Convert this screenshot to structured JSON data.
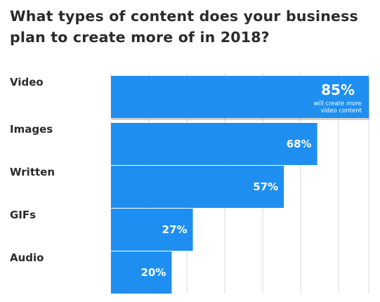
{
  "colors": {
    "bar": "#1e8ff0",
    "grid": "#d9d9d9",
    "text": "#2b2b2b",
    "label_on_bar": "#ffffff"
  },
  "chart_data": {
    "type": "bar",
    "orientation": "horizontal",
    "title": "What types of content does your business plan to create more of in 2018?",
    "categories": [
      "Video",
      "Images",
      "Written",
      "GIFs",
      "Audio"
    ],
    "values": [
      85,
      68,
      57,
      27,
      20
    ],
    "value_labels": [
      "85%",
      "68%",
      "57%",
      "27%",
      "20%"
    ],
    "annotation": {
      "category": "Video",
      "lines": [
        "will create more",
        "video content"
      ]
    },
    "xlim": [
      0,
      85
    ],
    "grid": true,
    "legend": "none"
  }
}
